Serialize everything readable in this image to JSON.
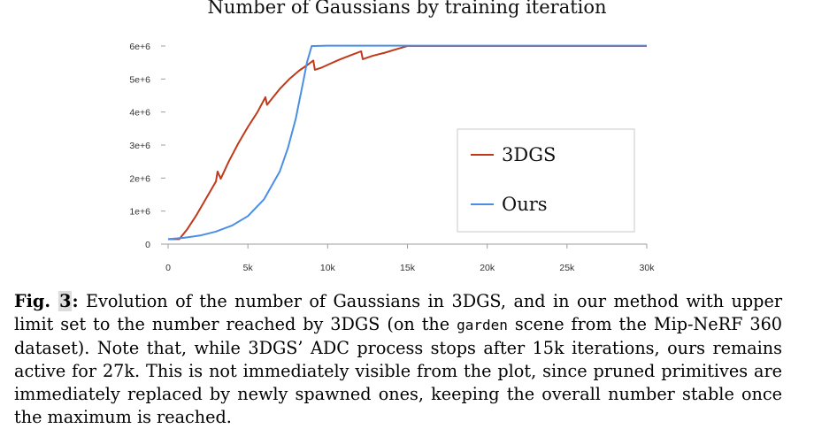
{
  "chart_data": {
    "type": "line",
    "title": "Number of Gaussians by training iteration",
    "xlabel": "",
    "ylabel": "",
    "xlim": [
      0,
      30000
    ],
    "ylim": [
      0,
      6000000
    ],
    "x_ticks": [
      0,
      5000,
      10000,
      15000,
      20000,
      25000,
      30000
    ],
    "x_tick_labels": [
      "0",
      "5k",
      "10k",
      "15k",
      "20k",
      "25k",
      "30k"
    ],
    "y_ticks": [
      0,
      1000000,
      2000000,
      3000000,
      4000000,
      5000000,
      6000000
    ],
    "y_tick_labels": [
      "0",
      "1e+6",
      "2e+6",
      "3e+6",
      "4e+6",
      "5e+6",
      "6e+6"
    ],
    "grid": false,
    "legend_position": "center-right",
    "series": [
      {
        "name": "3DGS",
        "color": "#c0391b",
        "x": [
          0,
          700,
          1200,
          1800,
          2400,
          3000,
          3100,
          3300,
          3800,
          4400,
          5000,
          5600,
          6100,
          6200,
          6500,
          7000,
          7600,
          8200,
          8800,
          9100,
          9200,
          9600,
          10100,
          10800,
          11500,
          12100,
          12200,
          12800,
          13600,
          14300,
          15000,
          30000
        ],
        "values": [
          150000,
          150000,
          450000,
          900000,
          1400000,
          1900000,
          2200000,
          1980000,
          2500000,
          3050000,
          3550000,
          4000000,
          4450000,
          4220000,
          4400000,
          4700000,
          5000000,
          5250000,
          5450000,
          5560000,
          5280000,
          5340000,
          5450000,
          5600000,
          5730000,
          5840000,
          5600000,
          5700000,
          5800000,
          5900000,
          6000000,
          6000000
        ]
      },
      {
        "name": "Ours",
        "color": "#4a8fe4",
        "x": [
          0,
          1000,
          2000,
          3000,
          4000,
          5000,
          6000,
          7000,
          7500,
          8000,
          8500,
          8700,
          9000,
          9200,
          10000,
          15000,
          30000
        ],
        "values": [
          150000,
          190000,
          260000,
          380000,
          560000,
          850000,
          1350000,
          2200000,
          2900000,
          3800000,
          5000000,
          5500000,
          6000000,
          6000000,
          6010000,
          6010000,
          6010000
        ]
      }
    ]
  },
  "caption": {
    "label_prefix": "Fig.",
    "number": "3",
    "label_suffix": ":",
    "text_before_code": " Evolution of the number of Gaussians in 3DGS, and in our method with upper limit set to the number reached by 3DGS (on the ",
    "code": "garden",
    "text_after_code": " scene from the Mip-NeRF 360 dataset). Note that, while 3DGS’ ADC process stops after 15k iterations, ours remains active for 27k. This is not immediately visible from the plot, since pruned primitives are immediately replaced by newly spawned ones, keeping the overall number stable once the maximum is reached."
  }
}
